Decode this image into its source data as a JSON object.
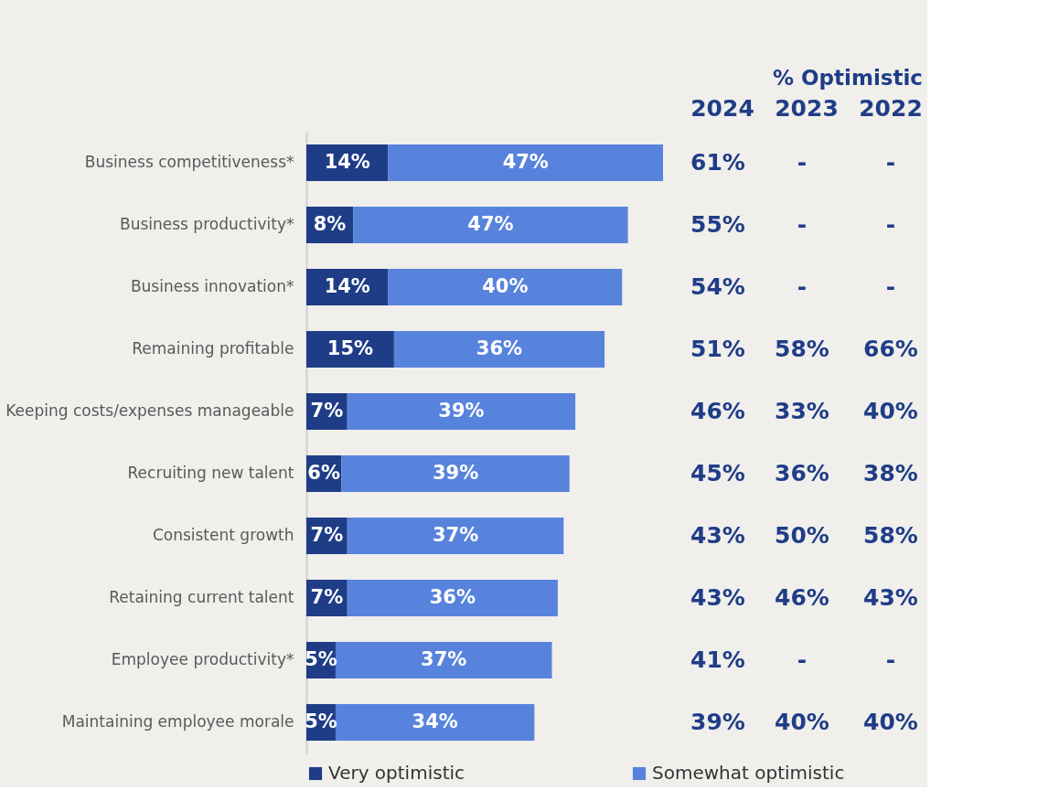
{
  "chart_data": {
    "type": "bar",
    "orientation": "horizontal",
    "stacked": true,
    "legend": "bottom",
    "grid": false,
    "tick_labels": "y",
    "categories": [
      "Business competitiveness*",
      "Business productivity*",
      "Business innovation*",
      "Remaining profitable",
      "Keeping costs/expenses manageable",
      "Recruiting new talent",
      "Consistent growth",
      "Retaining current talent",
      "Employee productivity*",
      "Maintaining employee morale"
    ],
    "series": [
      {
        "name": "Very optimistic",
        "color": "#1f3d87",
        "values": [
          14,
          8,
          14,
          15,
          7,
          6,
          7,
          7,
          5,
          5
        ],
        "value_labels": [
          "14%",
          "8%",
          "14%",
          "15%",
          "7%",
          "6%",
          "7%",
          "7%",
          "5%",
          "5%"
        ]
      },
      {
        "name": "Somewhat optimistic",
        "color": "#5883dd",
        "values": [
          47,
          47,
          40,
          36,
          39,
          39,
          37,
          36,
          37,
          34
        ],
        "value_labels": [
          "47%",
          "47%",
          "40%",
          "36%",
          "39%",
          "39%",
          "37%",
          "36%",
          "37%",
          "34%"
        ]
      }
    ],
    "annotations": [
      "% Optimistic",
      "2024",
      "2023",
      "2022",
      "61%",
      "55%",
      "54%",
      "51%",
      "46%",
      "45%",
      "43%",
      "43%",
      "41%",
      "39%",
      "-",
      "-",
      "-",
      "58%",
      "33%",
      "36%",
      "50%",
      "46%",
      "-",
      "40%",
      "-",
      "-",
      "-",
      "66%",
      "40%",
      "38%",
      "58%",
      "43%",
      "-",
      "40%"
    ]
  }
}
